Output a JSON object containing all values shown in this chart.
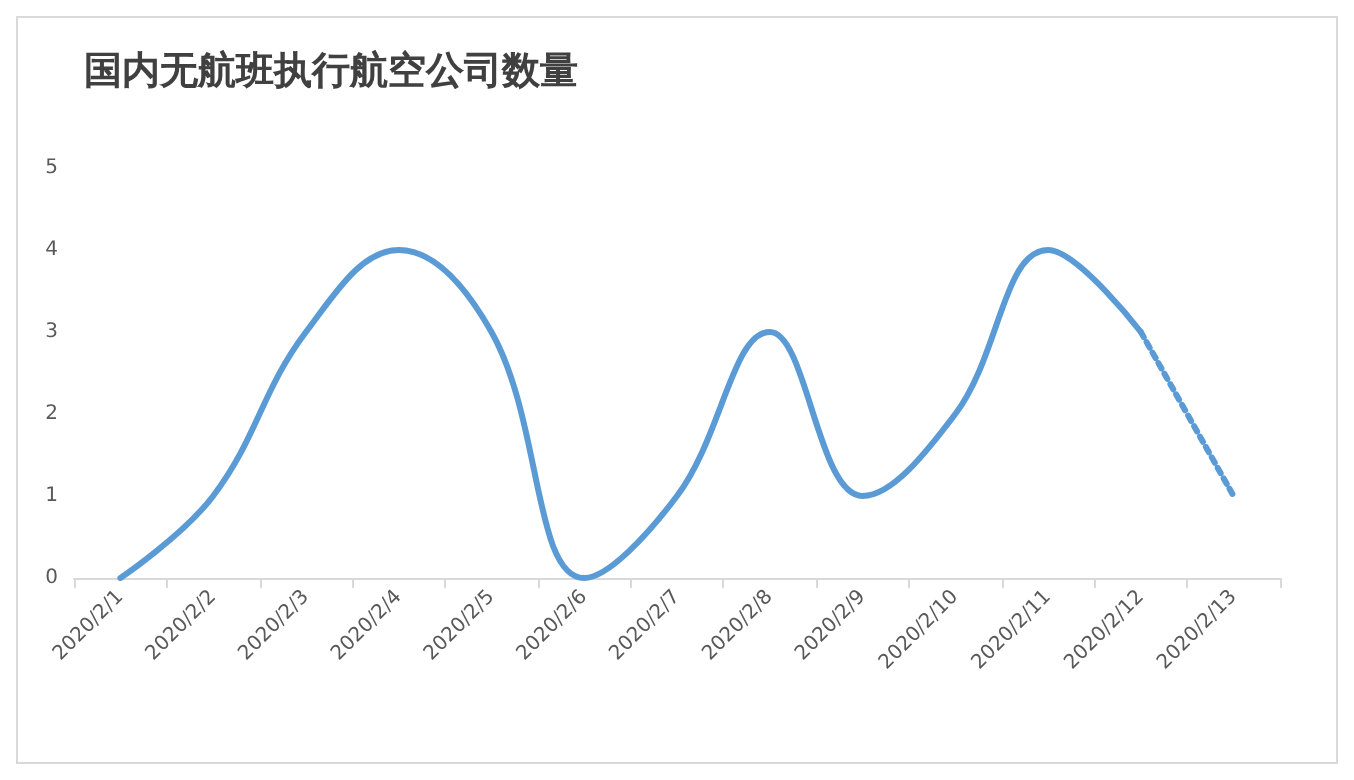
{
  "chart_data": {
    "type": "line",
    "title": "国内无航班执行航空公司数量",
    "categories": [
      "2020/2/1",
      "2020/2/2",
      "2020/2/3",
      "2020/2/4",
      "2020/2/5",
      "2020/2/6",
      "2020/2/7",
      "2020/2/8",
      "2020/2/9",
      "2020/2/10",
      "2020/2/11",
      "2020/2/12",
      "2020/2/13"
    ],
    "series": [
      {
        "color": "#5b9bd5",
        "line_style": "solid",
        "values": [
          0,
          1,
          3,
          4,
          3,
          0,
          1,
          3,
          1,
          2,
          4,
          3,
          null
        ]
      },
      {
        "color": "#5b9bd5",
        "line_style": "dotted",
        "values": [
          null,
          null,
          null,
          null,
          null,
          null,
          null,
          null,
          null,
          null,
          null,
          3,
          1
        ]
      }
    ],
    "ylim": [
      0,
      5
    ],
    "yticks": [
      0,
      1,
      2,
      3,
      4,
      5
    ],
    "grid": false,
    "marker": "none"
  }
}
